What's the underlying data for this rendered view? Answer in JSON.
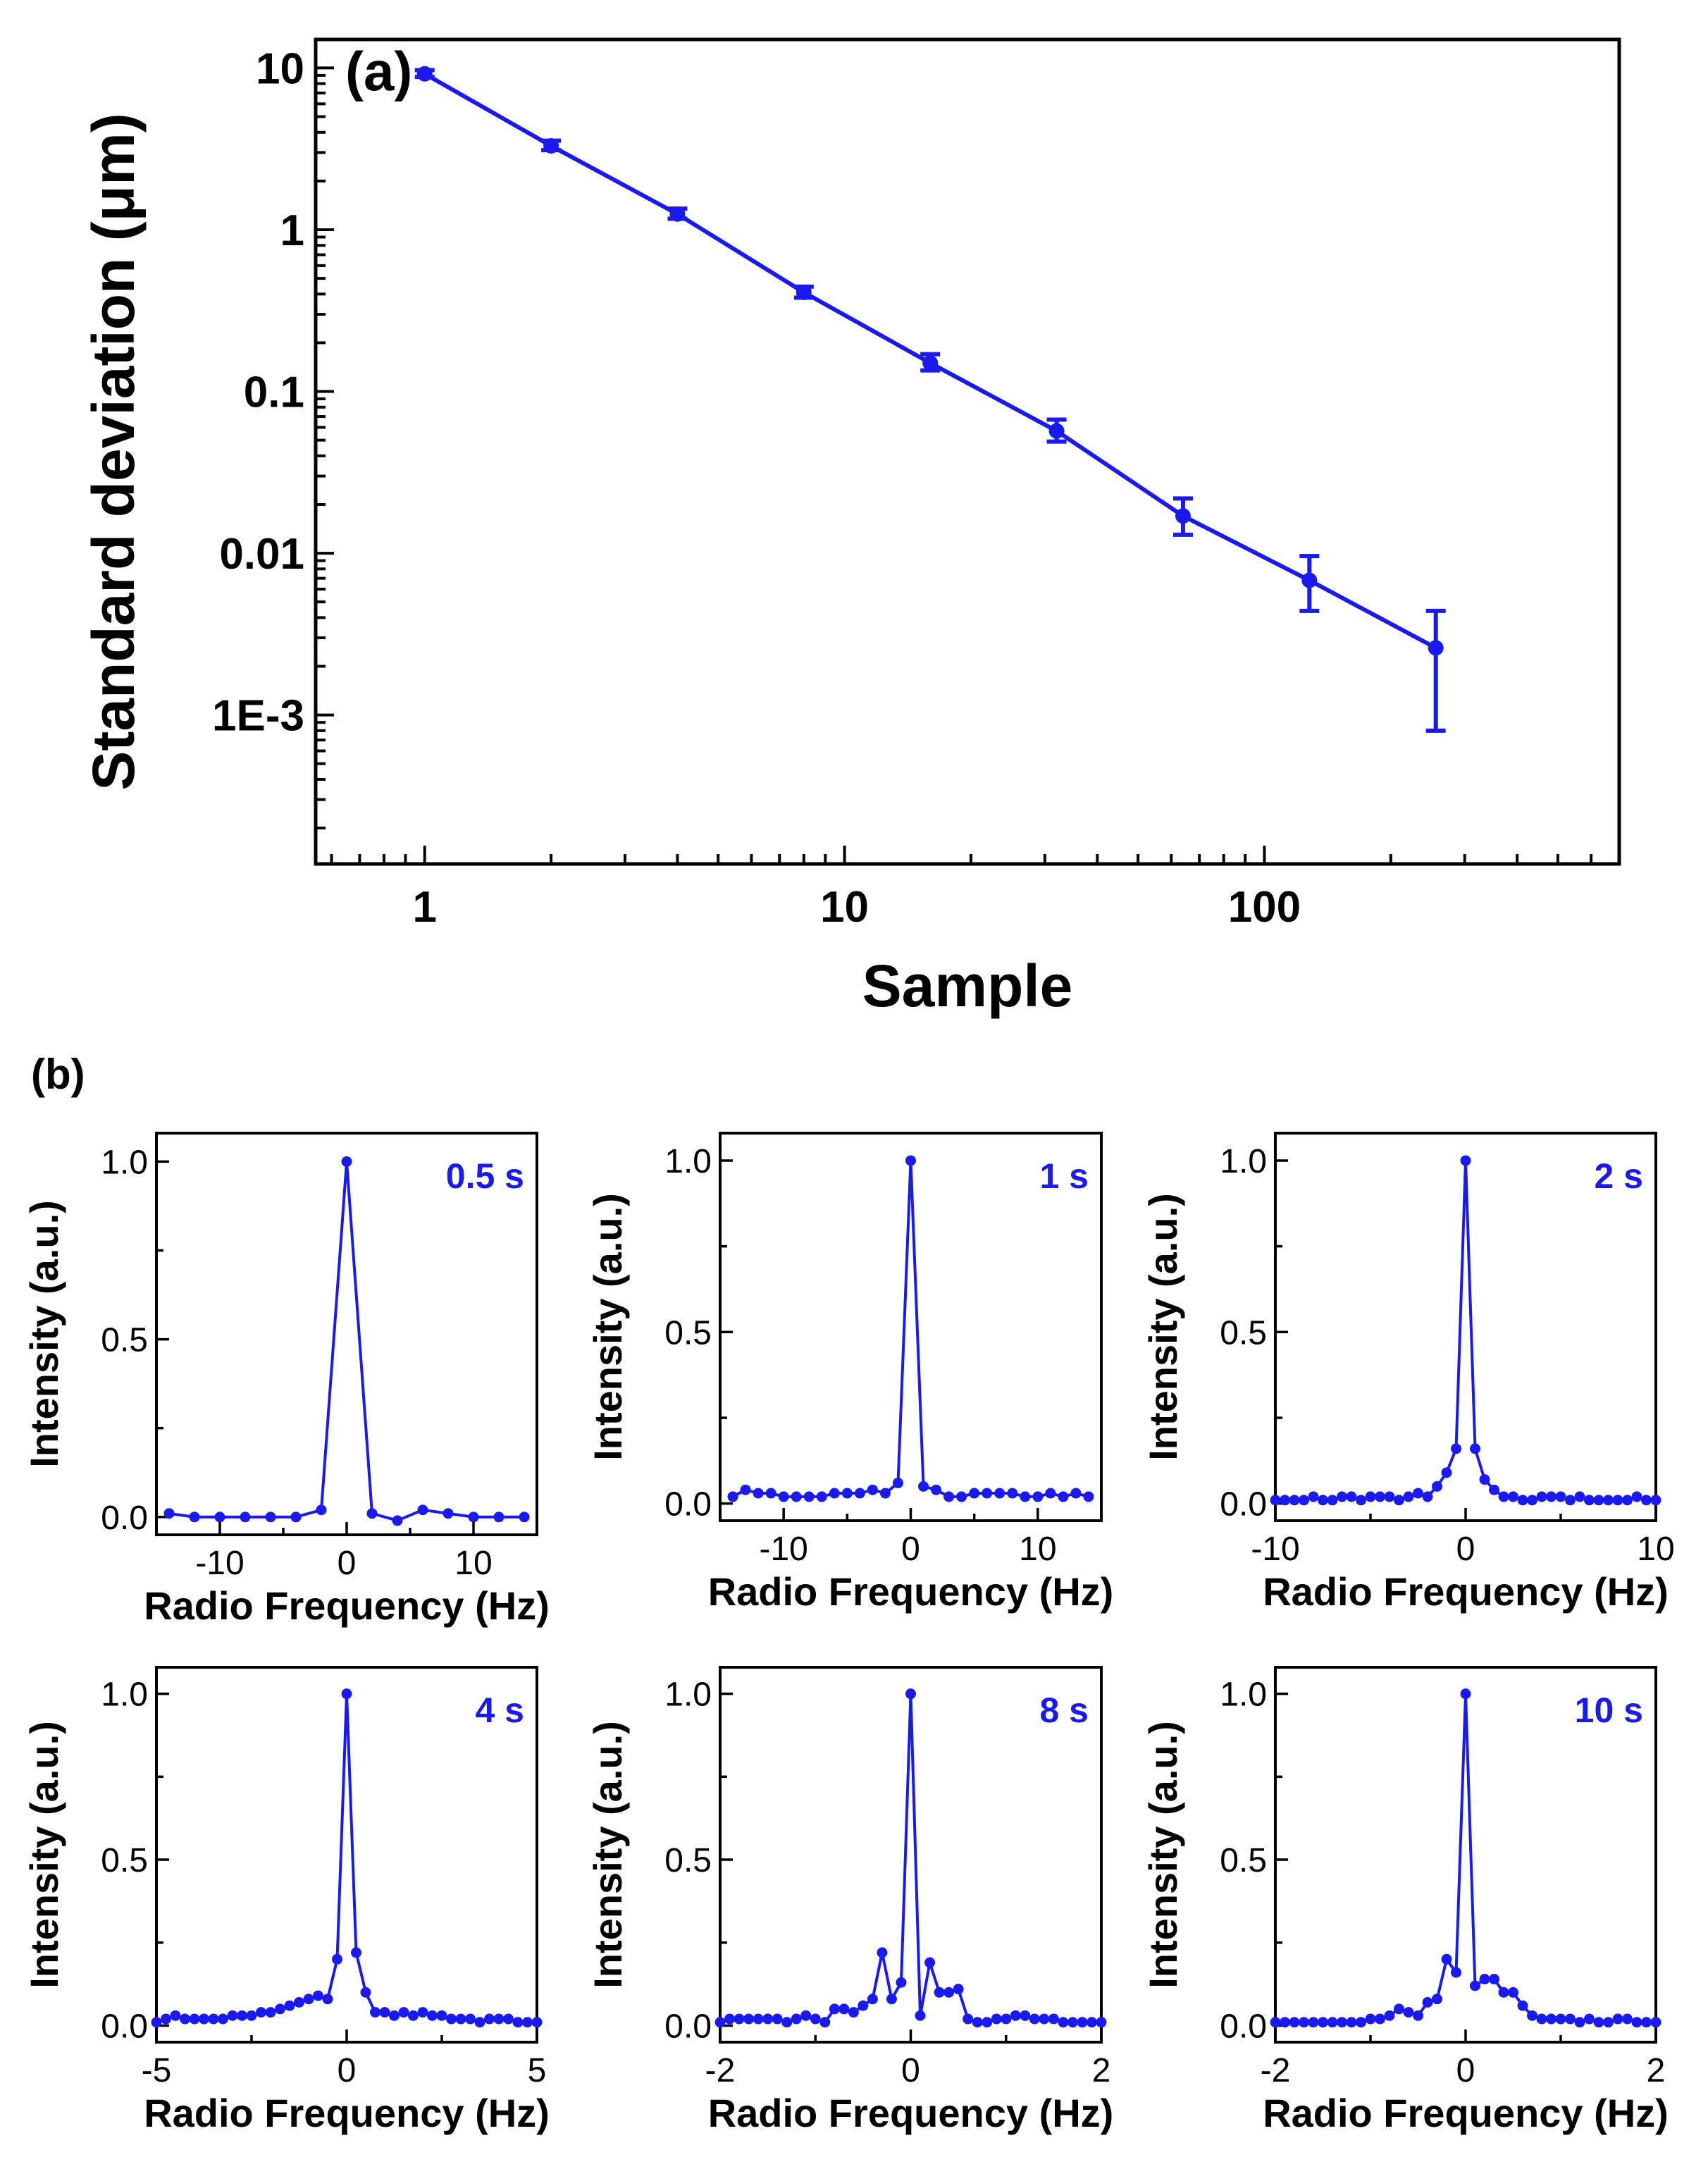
{
  "figure": {
    "panel_b_label": "(b)",
    "series_color": "#1a1aee"
  },
  "chart_data": [
    {
      "type": "scatter",
      "panel": "(a)",
      "title": "",
      "xlabel": "Sample",
      "ylabel": "Standard deviation (μm)",
      "xscale": "log",
      "yscale": "log",
      "xlim": [
        0.55,
        700
      ],
      "ylim": [
        0.00012,
        15
      ],
      "xticks": [
        1,
        10,
        100
      ],
      "xtick_labels": [
        "1",
        "10",
        "100"
      ],
      "yticks": [
        10,
        1,
        0.1,
        0.01,
        0.001
      ],
      "ytick_labels": [
        "10",
        "1",
        "0.1",
        "0.01",
        "1E-3"
      ],
      "x": [
        1,
        2,
        4,
        8,
        16,
        32,
        64,
        128,
        256
      ],
      "y": [
        9.2,
        3.3,
        1.25,
        0.41,
        0.15,
        0.057,
        0.017,
        0.0068,
        0.0026
      ],
      "yerr_low": [
        0.4,
        0.2,
        0.08,
        0.03,
        0.015,
        0.008,
        0.004,
        0.0024,
        0.0018
      ],
      "yerr_high": [
        0.5,
        0.25,
        0.1,
        0.035,
        0.02,
        0.01,
        0.0048,
        0.0028,
        0.0018
      ]
    },
    {
      "type": "line",
      "annotation": "0.5 s",
      "xlabel": "Radio Frequency (Hz)",
      "ylabel": "Intensity (a.u.)",
      "xlim": [
        -15,
        15
      ],
      "ylim": [
        -0.05,
        1.08
      ],
      "xticks": [
        -10,
        0,
        10
      ],
      "xtick_labels": [
        "-10",
        "0",
        "10"
      ],
      "yticks": [
        0,
        0.5,
        1
      ],
      "ytick_labels": [
        "0.0",
        "0.5",
        "1.0"
      ],
      "x": [
        -14,
        -12,
        -10,
        -8,
        -6,
        -4,
        -2,
        0,
        2,
        4,
        6,
        8,
        10,
        12,
        14
      ],
      "y": [
        0.01,
        0.0,
        0.0,
        0.0,
        0.0,
        0.0,
        0.02,
        1.0,
        0.01,
        -0.01,
        0.02,
        0.01,
        0.0,
        0.0,
        0.0
      ]
    },
    {
      "type": "line",
      "annotation": "1 s",
      "xlabel": "Radio Frequency (Hz)",
      "ylabel": "Intensity (a.u.)",
      "xlim": [
        -15,
        15
      ],
      "ylim": [
        -0.05,
        1.08
      ],
      "xticks": [
        -10,
        0,
        10
      ],
      "xtick_labels": [
        "-10",
        "0",
        "10"
      ],
      "yticks": [
        0,
        0.5,
        1
      ],
      "ytick_labels": [
        "0.0",
        "0.5",
        "1.0"
      ],
      "x": [
        -14,
        -13,
        -12,
        -11,
        -10,
        -9,
        -8,
        -7,
        -6,
        -5,
        -4,
        -3,
        -2,
        -1,
        0,
        1,
        2,
        3,
        4,
        5,
        6,
        7,
        8,
        9,
        10,
        11,
        12,
        13,
        14
      ],
      "y": [
        0.02,
        0.04,
        0.03,
        0.03,
        0.02,
        0.02,
        0.02,
        0.02,
        0.03,
        0.03,
        0.03,
        0.04,
        0.03,
        0.06,
        1.0,
        0.05,
        0.04,
        0.02,
        0.02,
        0.03,
        0.03,
        0.03,
        0.03,
        0.02,
        0.02,
        0.03,
        0.02,
        0.03,
        0.02
      ]
    },
    {
      "type": "line",
      "annotation": "2 s",
      "xlabel": "Radio Frequency (Hz)",
      "ylabel": "Intensity (a.u.)",
      "xlim": [
        -10,
        10
      ],
      "ylim": [
        -0.05,
        1.08
      ],
      "xticks": [
        -10,
        0,
        10
      ],
      "xtick_labels": [
        "-10",
        "0",
        "10"
      ],
      "yticks": [
        0,
        0.5,
        1
      ],
      "ytick_labels": [
        "0.0",
        "0.5",
        "1.0"
      ],
      "x": [
        -10,
        -9.5,
        -9,
        -8.5,
        -8,
        -7.5,
        -7,
        -6.5,
        -6,
        -5.5,
        -5,
        -4.5,
        -4,
        -3.5,
        -3,
        -2.5,
        -2,
        -1.5,
        -1,
        -0.5,
        0,
        0.5,
        1,
        1.5,
        2,
        2.5,
        3,
        3.5,
        4,
        4.5,
        5,
        5.5,
        6,
        6.5,
        7,
        7.5,
        8,
        8.5,
        9,
        9.5,
        10
      ],
      "y": [
        0.01,
        0.01,
        0.01,
        0.01,
        0.02,
        0.01,
        0.01,
        0.02,
        0.02,
        0.01,
        0.02,
        0.02,
        0.02,
        0.01,
        0.02,
        0.03,
        0.02,
        0.05,
        0.09,
        0.16,
        1.0,
        0.16,
        0.07,
        0.04,
        0.02,
        0.02,
        0.01,
        0.01,
        0.02,
        0.02,
        0.02,
        0.01,
        0.02,
        0.01,
        0.01,
        0.01,
        0.01,
        0.01,
        0.02,
        0.01,
        0.01
      ]
    },
    {
      "type": "line",
      "annotation": "4 s",
      "xlabel": "Radio Frequency (Hz)",
      "ylabel": "Intensity (a.u.)",
      "xlim": [
        -5,
        5
      ],
      "ylim": [
        -0.05,
        1.08
      ],
      "xticks": [
        -5,
        0,
        5
      ],
      "xtick_labels": [
        "-5",
        "0",
        "5"
      ],
      "yticks": [
        0,
        0.5,
        1
      ],
      "ytick_labels": [
        "0.0",
        "0.5",
        "1.0"
      ],
      "x": [
        -5,
        -4.75,
        -4.5,
        -4.25,
        -4,
        -3.75,
        -3.5,
        -3.25,
        -3,
        -2.75,
        -2.5,
        -2.25,
        -2,
        -1.75,
        -1.5,
        -1.25,
        -1,
        -0.75,
        -0.5,
        -0.25,
        0,
        0.25,
        0.5,
        0.75,
        1,
        1.25,
        1.5,
        1.75,
        2,
        2.25,
        2.5,
        2.75,
        3,
        3.25,
        3.5,
        3.75,
        4,
        4.25,
        4.5,
        4.75,
        5
      ],
      "y": [
        0.01,
        0.02,
        0.03,
        0.02,
        0.02,
        0.02,
        0.02,
        0.02,
        0.03,
        0.03,
        0.03,
        0.04,
        0.04,
        0.05,
        0.06,
        0.07,
        0.08,
        0.09,
        0.08,
        0.2,
        1.0,
        0.22,
        0.1,
        0.04,
        0.04,
        0.03,
        0.04,
        0.03,
        0.04,
        0.03,
        0.03,
        0.02,
        0.02,
        0.02,
        0.01,
        0.02,
        0.02,
        0.02,
        0.01,
        0.01,
        0.01
      ]
    },
    {
      "type": "line",
      "annotation": "8 s",
      "xlabel": "Radio Frequency (Hz)",
      "ylabel": "Intensity (a.u.)",
      "xlim": [
        -2,
        2
      ],
      "ylim": [
        -0.05,
        1.08
      ],
      "xticks": [
        -2,
        0,
        2
      ],
      "xtick_labels": [
        "-2",
        "0",
        "2"
      ],
      "yticks": [
        0,
        0.5,
        1
      ],
      "ytick_labels": [
        "0.0",
        "0.5",
        "1.0"
      ],
      "x": [
        -2,
        -1.9,
        -1.8,
        -1.7,
        -1.6,
        -1.5,
        -1.4,
        -1.3,
        -1.2,
        -1.1,
        -1,
        -0.9,
        -0.8,
        -0.7,
        -0.6,
        -0.5,
        -0.4,
        -0.3,
        -0.2,
        -0.1,
        0,
        0.1,
        0.2,
        0.3,
        0.4,
        0.5,
        0.6,
        0.7,
        0.8,
        0.9,
        1,
        1.1,
        1.2,
        1.3,
        1.4,
        1.5,
        1.6,
        1.7,
        1.8,
        1.9,
        2
      ],
      "y": [
        0.01,
        0.02,
        0.02,
        0.02,
        0.02,
        0.02,
        0.02,
        0.01,
        0.02,
        0.03,
        0.02,
        0.01,
        0.05,
        0.05,
        0.04,
        0.06,
        0.08,
        0.22,
        0.08,
        0.13,
        1.0,
        0.03,
        0.19,
        0.1,
        0.1,
        0.11,
        0.02,
        0.01,
        0.01,
        0.02,
        0.02,
        0.03,
        0.03,
        0.02,
        0.02,
        0.02,
        0.01,
        0.01,
        0.01,
        0.01,
        0.01
      ]
    },
    {
      "type": "line",
      "annotation": "10 s",
      "xlabel": "Radio Frequency (Hz)",
      "ylabel": "Intensity (a.u.)",
      "xlim": [
        -2,
        2
      ],
      "ylim": [
        -0.05,
        1.08
      ],
      "xticks": [
        -2,
        0,
        2
      ],
      "xtick_labels": [
        "-2",
        "0",
        "2"
      ],
      "yticks": [
        0,
        0.5,
        1
      ],
      "ytick_labels": [
        "0.0",
        "0.5",
        "1.0"
      ],
      "x": [
        -2,
        -1.9,
        -1.8,
        -1.7,
        -1.6,
        -1.5,
        -1.4,
        -1.3,
        -1.2,
        -1.1,
        -1,
        -0.9,
        -0.8,
        -0.7,
        -0.6,
        -0.5,
        -0.4,
        -0.3,
        -0.2,
        -0.1,
        0,
        0.1,
        0.2,
        0.3,
        0.4,
        0.5,
        0.6,
        0.7,
        0.8,
        0.9,
        1,
        1.1,
        1.2,
        1.3,
        1.4,
        1.5,
        1.6,
        1.7,
        1.8,
        1.9,
        2
      ],
      "y": [
        0.01,
        0.01,
        0.01,
        0.01,
        0.01,
        0.01,
        0.01,
        0.01,
        0.01,
        0.01,
        0.02,
        0.02,
        0.03,
        0.05,
        0.04,
        0.03,
        0.07,
        0.08,
        0.2,
        0.16,
        1.0,
        0.12,
        0.14,
        0.14,
        0.1,
        0.1,
        0.06,
        0.03,
        0.02,
        0.02,
        0.02,
        0.02,
        0.01,
        0.02,
        0.01,
        0.01,
        0.02,
        0.02,
        0.01,
        0.01,
        0.01
      ]
    }
  ]
}
